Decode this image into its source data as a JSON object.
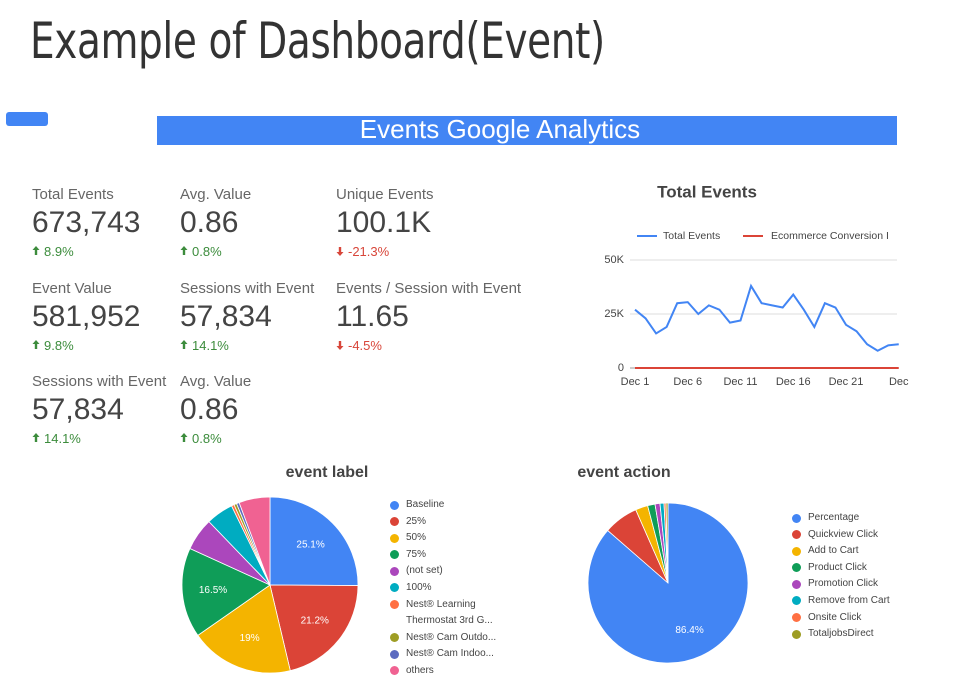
{
  "title": "Example of Dashboard(Event)",
  "banner": "Events Google Analytics",
  "scorecards": [
    {
      "label": "Total Events",
      "value": "673,743",
      "change": "8.9%",
      "direction": "up"
    },
    {
      "label": "Avg. Value",
      "value": "0.86",
      "change": "0.8%",
      "direction": "up"
    },
    {
      "label": "Unique Events",
      "value": "100.1K",
      "change": "-21.3%",
      "direction": "down"
    },
    {
      "label": "Event Value",
      "value": "581,952",
      "change": "9.8%",
      "direction": "up"
    },
    {
      "label": "Sessions with Event",
      "value": "57,834",
      "change": "14.1%",
      "direction": "up"
    },
    {
      "label": "Events / Session with Event",
      "value": "11.65",
      "change": "-4.5%",
      "direction": "down"
    },
    {
      "label": "Sessions with Event",
      "value": "57,834",
      "change": "14.1%",
      "direction": "up"
    },
    {
      "label": "Avg. Value",
      "value": "0.86",
      "change": "0.8%",
      "direction": "up"
    }
  ],
  "charts": [
    {
      "type": "line",
      "title": "Total Events",
      "categories": [
        "Dec 1",
        null,
        null,
        null,
        null,
        "Dec 6",
        null,
        null,
        null,
        null,
        "Dec 11",
        null,
        null,
        null,
        null,
        "Dec 16",
        null,
        null,
        null,
        null,
        "Dec 21",
        null,
        null,
        null,
        null,
        "Dec"
      ],
      "series": [
        {
          "name": "Total Events",
          "color": "#4285f4",
          "values": [
            27000,
            23000,
            16000,
            19000,
            30000,
            30500,
            25000,
            29000,
            27000,
            21000,
            22000,
            38000,
            30000,
            29000,
            28000,
            34000,
            27000,
            19000,
            30000,
            28000,
            20000,
            17000,
            11000,
            8000,
            10500,
            11000
          ]
        },
        {
          "name": "Ecommerce Conversion I",
          "color": "#db4437",
          "values": [
            0,
            0,
            0,
            0,
            0,
            0,
            0,
            0,
            0,
            0,
            0,
            0,
            0,
            0,
            0,
            0,
            0,
            0,
            0,
            0,
            0,
            0,
            0,
            0,
            0,
            0
          ]
        }
      ],
      "ylim": [
        0,
        50000
      ],
      "yticks": [
        0,
        {
          "value": 25000,
          "label": "25K"
        },
        {
          "value": 50000,
          "label": "50K"
        }
      ],
      "grid": true
    },
    {
      "type": "pie",
      "title": "event label",
      "categories": [
        "Baseline",
        "25%",
        "50%",
        "75%",
        "(not set)",
        "100%",
        "Nest® Learning Thermostat 3rd G...",
        "Nest® Cam Outdo...",
        "Nest® Cam Indoo...",
        "others"
      ],
      "values": [
        25.1,
        21.2,
        19,
        16.5,
        6,
        5,
        0.5,
        0.5,
        0.5,
        5.7
      ],
      "value_labels": [
        "25.1%",
        "21.2%",
        "19%",
        "16.5%",
        null,
        null,
        null,
        null,
        null,
        null
      ],
      "colors": [
        "#4285f4",
        "#db4437",
        "#f4b400",
        "#0f9d58",
        "#ab47bc",
        "#00acc1",
        "#ff7043",
        "#9e9d24",
        "#5c6bc0",
        "#f06292"
      ]
    },
    {
      "type": "pie",
      "title": "event action",
      "categories": [
        "Percentage",
        "Quickview Click",
        "Add to Cart",
        "Product Click",
        "Promotion Click",
        "Remove from Cart",
        "Onsite Click",
        "TotaljobsDirect"
      ],
      "values": [
        86.4,
        7,
        2.5,
        1.5,
        1,
        0.8,
        0.4,
        0.4
      ],
      "value_labels": [
        "86.4%",
        null,
        null,
        null,
        null,
        null,
        null,
        null
      ],
      "colors": [
        "#4285f4",
        "#db4437",
        "#f4b400",
        "#0f9d58",
        "#ab47bc",
        "#00acc1",
        "#ff7043",
        "#9e9d24"
      ]
    }
  ]
}
